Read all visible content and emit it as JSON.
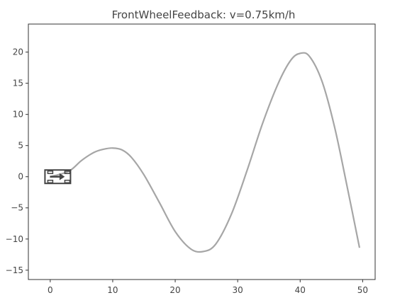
{
  "chart_data": {
    "type": "line",
    "title": "FrontWheelFeedback: v=0.75km/h",
    "xlabel": "",
    "ylabel": "",
    "xlim": [
      -3.5,
      52.0
    ],
    "ylim": [
      -16.5,
      24.5
    ],
    "x_ticks": [
      0,
      10,
      20,
      30,
      40,
      50
    ],
    "x_tick_labels": [
      "0",
      "10",
      "20",
      "30",
      "40",
      "50"
    ],
    "y_ticks": [
      -15,
      -10,
      -5,
      0,
      5,
      10,
      15,
      20
    ],
    "y_tick_labels": [
      "−15",
      "−10",
      "−5",
      "0",
      "5",
      "10",
      "15",
      "20"
    ],
    "grid": false,
    "series": [
      {
        "color": "#a6a6a6",
        "x": [
          0,
          3,
          5,
          7,
          8.5,
          10,
          11.5,
          13,
          15,
          17.5,
          20,
          22.5,
          24.5,
          26.5,
          29,
          31.5,
          34,
          36.5,
          38.5,
          40,
          41.5,
          43.5,
          45.5,
          47.5,
          49.5
        ],
        "y": [
          0,
          0.9,
          2.6,
          3.9,
          4.4,
          4.6,
          4.3,
          3.1,
          0.3,
          -4.2,
          -8.8,
          -11.6,
          -12.0,
          -10.8,
          -6.0,
          1.0,
          8.6,
          15.0,
          18.7,
          19.8,
          19.3,
          15.3,
          8.0,
          -1.5,
          -11.4
        ]
      }
    ],
    "vehicle": {
      "x": 1.2,
      "y": 0.0,
      "heading_deg": 0,
      "color": "#444444"
    }
  }
}
